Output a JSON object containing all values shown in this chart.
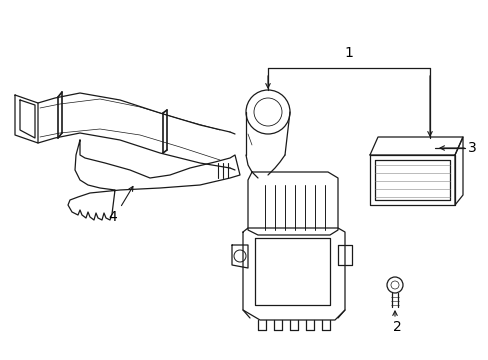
{
  "background_color": "#ffffff",
  "line_color": "#1a1a1a",
  "label_color": "#000000",
  "figsize": [
    4.89,
    3.6
  ],
  "dpi": 100,
  "lw": 0.9
}
